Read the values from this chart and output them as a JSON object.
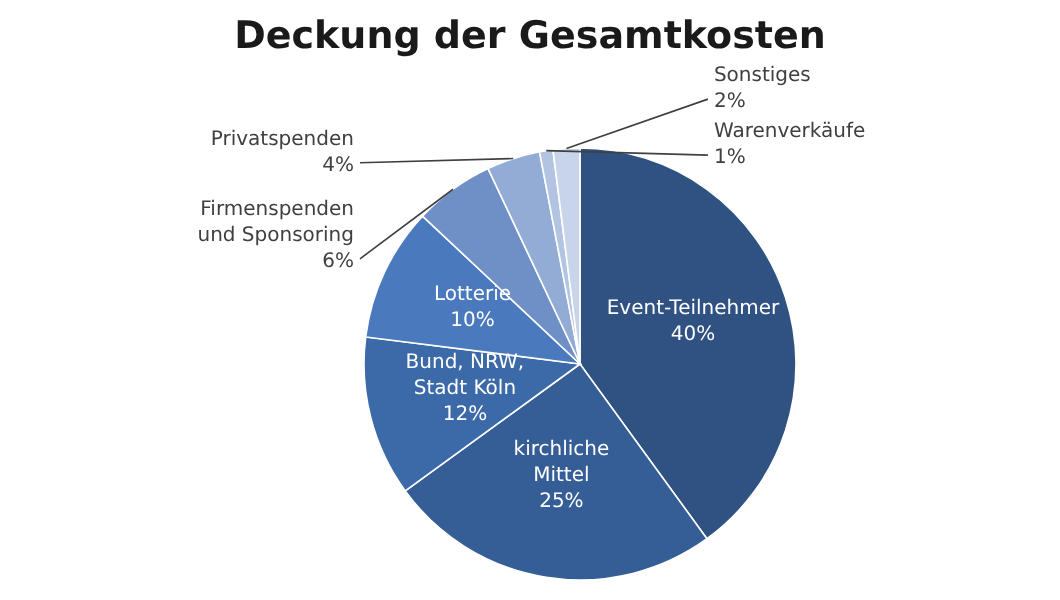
{
  "chart_data": {
    "type": "pie",
    "title": "Deckung der Gesamtkosten",
    "categories": [
      "Event-Teilnehmer",
      "kirchliche Mittel",
      "Bund, NRW, Stadt Köln",
      "Lotterie",
      "Firmenspenden und Sponsoring",
      "Privatspenden",
      "Warenverkäufe",
      "Sonstiges"
    ],
    "values": [
      40,
      25,
      12,
      10,
      6,
      4,
      1,
      2
    ],
    "value_labels": [
      "40%",
      "25%",
      "12%",
      "10%",
      "6%",
      "4%",
      "1%",
      "2%"
    ],
    "colors": [
      "#2f5283",
      "#355d96",
      "#3c69a8",
      "#4a7abd",
      "#6f90c6",
      "#92acd5",
      "#b3c4e2",
      "#c8d4ea"
    ]
  }
}
